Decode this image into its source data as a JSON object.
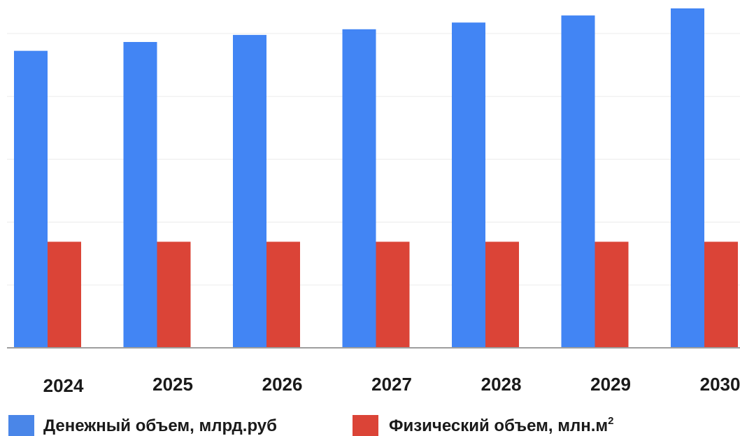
{
  "chart_data": {
    "type": "bar",
    "title": "",
    "xlabel": "",
    "ylabel": "",
    "categories": [
      "2024",
      "2025",
      "2026",
      "2027",
      "2028",
      "2029",
      "2030"
    ],
    "series": [
      {
        "name": "Денежный объем, млрд.руб",
        "color": "#4285f4",
        "values": [
          84,
          86.5,
          88.5,
          90.1,
          92,
          94,
          96
        ]
      },
      {
        "name": "Физический объем, млн.м²",
        "color": "#db4437",
        "values": [
          30,
          30,
          30,
          30,
          30,
          30,
          30
        ]
      }
    ],
    "ylim": [
      0,
      96
    ],
    "grid": true,
    "legend_position": "bottom"
  },
  "legend": {
    "items": [
      {
        "text": "Денежный объем, млрд.руб",
        "sup": ""
      },
      {
        "text": "Физический объем, млн.м",
        "sup": "2"
      }
    ]
  }
}
